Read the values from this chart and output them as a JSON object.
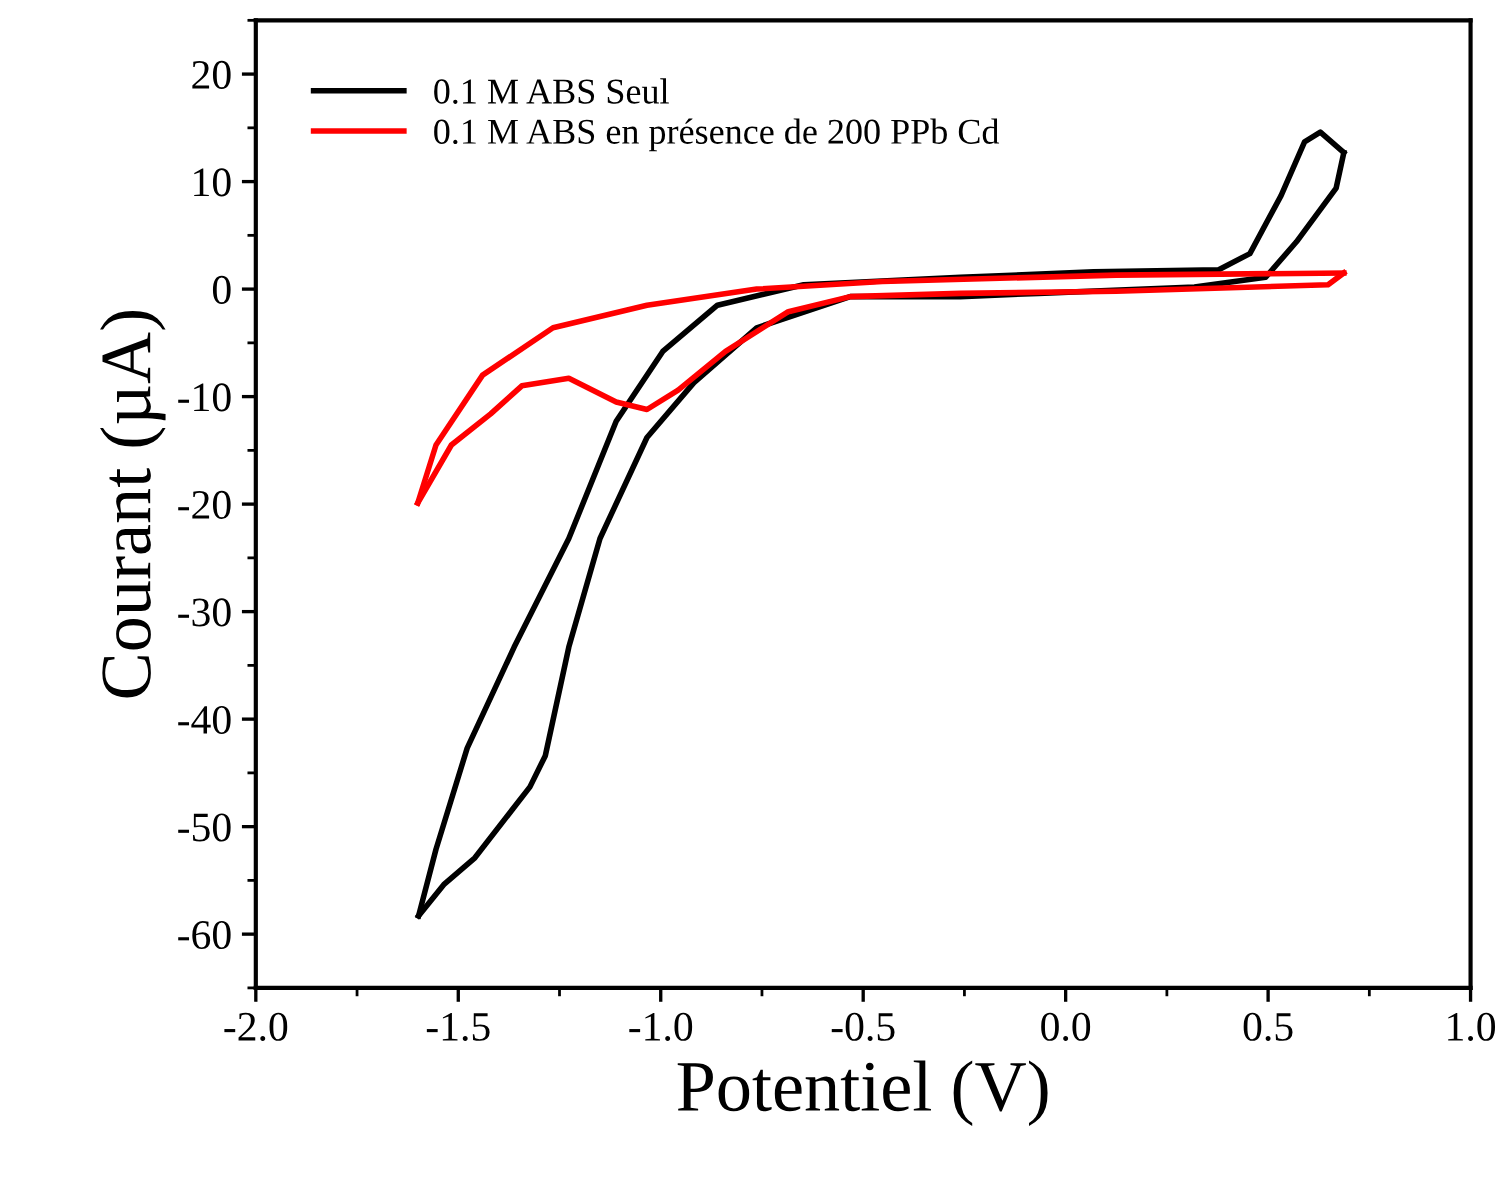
{
  "chart_data": {
    "type": "line",
    "xlabel": "Potentiel (V)",
    "ylabel": "Courant (µA)",
    "xlim": [
      -2.0,
      1.0
    ],
    "xticks": [
      {
        "value": -2.0,
        "label": "-2.0"
      },
      {
        "value": -1.5,
        "label": "-1.5"
      },
      {
        "value": -1.0,
        "label": "-1.0"
      },
      {
        "value": -0.5,
        "label": "-0.5"
      },
      {
        "value": 0.0,
        "label": "0.0"
      },
      {
        "value": 0.5,
        "label": "0.5"
      },
      {
        "value": 1.0,
        "label": "1.0"
      }
    ],
    "ylim": [
      -65,
      25
    ],
    "yticks": [
      -60,
      -50,
      -40,
      -30,
      -20,
      -10,
      0,
      10,
      20
    ],
    "legend": "top left",
    "grid": false,
    "series": [
      {
        "name": "0.1 M ABS Seul",
        "color": "#000000",
        "x": [
          -1.598,
          -1.555,
          -1.478,
          -1.362,
          -1.227,
          -1.11,
          -0.995,
          -0.86,
          -0.647,
          -0.26,
          0.069,
          0.378,
          0.455,
          0.532,
          0.59,
          0.629,
          0.687
        ],
        "values": [
          -58.3,
          -52.1,
          -42.7,
          -33.3,
          -23.2,
          -12.3,
          -5.8,
          -1.5,
          0.4,
          1.1,
          1.6,
          1.8,
          3.3,
          8.7,
          13.7,
          14.6,
          12.7
        ]
      },
      {
        "color": "#000000",
        "x": [
          0.687,
          0.668,
          0.57,
          0.494,
          0.318,
          -0.067,
          -0.26,
          -0.532,
          -0.763,
          -0.918,
          -1.034,
          -1.15,
          -1.227,
          -1.285,
          -1.323,
          -1.459,
          -1.536,
          -1.598
        ],
        "values": [
          12.7,
          9.4,
          4.4,
          1.1,
          0.2,
          -0.4,
          -0.7,
          -0.7,
          -3.6,
          -8.7,
          -13.8,
          -23.2,
          -33.3,
          -43.4,
          -46.3,
          -52.9,
          -55.4,
          -58.3
        ]
      },
      {
        "name": "0.1 M ABS en présence de 200 PPb Cd",
        "color": "#ff0000",
        "x": [
          -1.6,
          -1.555,
          -1.44,
          -1.266,
          -1.034,
          -0.763,
          -0.453,
          0.125,
          0.687
        ],
        "values": [
          -19.9,
          -14.5,
          -8.0,
          -3.6,
          -1.5,
          0.0,
          0.7,
          1.3,
          1.5
        ]
      },
      {
        "color": "#ff0000",
        "x": [
          0.687,
          0.648,
          0.125,
          -0.26,
          -0.532,
          -0.685,
          -0.84,
          -0.957,
          -1.034,
          -1.11,
          -1.227,
          -1.343,
          -1.42,
          -1.517,
          -1.6
        ],
        "values": [
          1.5,
          0.4,
          -0.2,
          -0.4,
          -0.7,
          -2.1,
          -5.8,
          -9.4,
          -11.2,
          -10.5,
          -8.3,
          -9.0,
          -11.6,
          -14.5,
          -19.9
        ]
      }
    ]
  }
}
